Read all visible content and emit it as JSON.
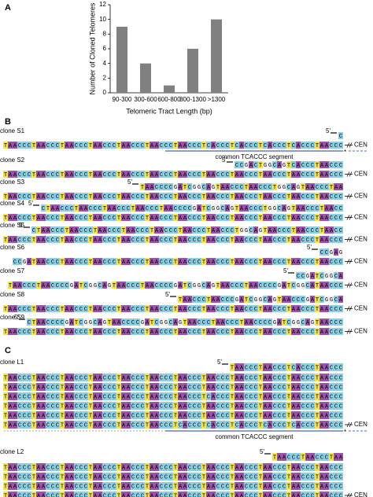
{
  "panel_a": {
    "label": "A",
    "chart_data": {
      "type": "bar",
      "categories": [
        "90-300",
        "300-600",
        "600-800",
        "800-1300",
        ">1300"
      ],
      "values": [
        9,
        4,
        1,
        6,
        10
      ],
      "color": "#808080",
      "ylim": [
        0,
        12
      ],
      "yticks": [
        0,
        2,
        4,
        6,
        8,
        10,
        12
      ],
      "ylabel": "Number of Cloned Telomeres",
      "xlabel": "Telomeric Tract Length (bp)"
    }
  },
  "panel_b": {
    "label": "B",
    "segment_label": "common TCACCC segment",
    "clones": [
      {
        "name": "clone S1",
        "lines": [
          "C",
          "TAACCCTAACCCTAACCCTAACCCTAACCCTAACCCTAACCCTCACCCTCACCCTCACCCTCACCCTAACCC"
        ]
      },
      {
        "name": "clone S2",
        "lines": [
          "CCGACTGGCAGTCACCCTAACCC",
          "TAACCCTAACCCTAACCCTAACCCTAACCCTAACCCTAACCCTAACCCTAACCCTAACCCTAACCCTAACCC"
        ]
      },
      {
        "name": "clone S3",
        "lines": [
          "TAACCCCGATCGGCAGTAACCCTAACCCTGGCAGTAACCCTAA",
          "TAACCCTAACCCTAACCCTAACCCTAACCCTAACCCTAACCCTAACCCTAACCCTAACCCTAACCCTAACCC"
        ]
      },
      {
        "name": "clone S4",
        "lines": [
          "CTAACCCTAACCCTAACCCTAACCCTAACCCCGATCGGCAGTAACCCTGGCAGTAACCCTAACC",
          "TAACCCTAACCCTAACCCTAACCCTAACCCTAACCCTAACCCTAACCCTAACCCTAACCCTAACCCTAACCC"
        ]
      },
      {
        "name": "clone S5",
        "lines": [
          "CTAACCCTAACCCTAACCCTAACCCTAACCCTAACCCTAACCCTGGCAGTAACCCTAACCCTAACC",
          "TAACCCTAACCCTAACCCTAACCCTAACCCTAACCCTAACCCTAACCCTAACCCTAACCCTAACCCTAACCC"
        ]
      },
      {
        "name": "clone S6",
        "lines": [
          "CCGAG",
          "CCGATAACCCTAACCCTAACCCTAACCCTAACCCTAACCCTAACCCTAACCCTAACCCTAACCCTAACCC"
        ]
      },
      {
        "name": "clone S7",
        "lines": [
          "CCGATCGGCA",
          "TAACCCTAACCCCGATCGGCAGTAACCCTAACCCCGATCGGCAGTAACCCTAACCCCGATCGGCATAACCC"
        ]
      },
      {
        "name": "clone S8",
        "lines": [
          "TAACCCTAACCCGATCGGCAGTAACCCGATCGGCA",
          "TAACCCTAACCCTAACCCTAACCCTAACCCTAACCCTAACCCTAACCCTAACCCTAACCCTAACCCTAACCC"
        ]
      },
      {
        "name": "clone S9",
        "lines": [
          "CTAACCCCGATCGGCAGTAACCCCGATCGGCAGTAACCCTAACCCTAACCCCGATCGGCAGTAACCC",
          "TAACCCTAACCCTAACCCTAACCCTAACCCTAACCCTAACCCTAACCCTAACCCTAACCCTAACCCTAACCC"
        ]
      }
    ]
  },
  "panel_c": {
    "label": "C",
    "segment_label": "common TCACCC segment",
    "clones": [
      {
        "name": "clone L1",
        "lines": [
          "TAACCCTAACCCTCACCCTAACCC",
          "TAACCCTAACCCTAACCCTAACCCTAACCCTAACCCTAACCCTAACCCTAACCCTAACCCTAACCCTAACCC",
          "TAACCCTAACCCTAACCCTAACCCTAACCCTAACCCTAACCCTAACCCTAACCCTAACCCTAACCCTAACCC",
          "TAACCCTAACCCTAACCCTAACCCTAACCCTAACCCTAACCCTCACCCTAACCCTAACCCTAACCCTAACCC",
          "TAACCCTAACCCTAACCCTAACCCTAACCCTAACCCTAACCCTAACCCTAACCCTAACCCTAACCCTAACCC",
          "TAACCCTAACCCTAACCCTAACCCTAACCCTAACCCTAACCCTAACCCTAACCCTAACCCTAACCCTAACCC",
          "TAACCCTAACCCTAACCCTAACCCTAACCCTAACCCTCACCCTCACCCTCACCCTCACCCTCACCCTAACCC"
        ]
      },
      {
        "name": "clone L2",
        "lines": [
          "TAACCCTAACCCTAA",
          "TAACCCTAACCCTAACCCTAACCCTAACCCTAACCCTAACCCTAACCCTAACCCTAACCCTAACCCTAACCC",
          "TAACCCTAACCCTAACCCTAACCCTAACCCTAACCCTAACCCTAACCCTAACCCTAACCCTAACCCTAACCC",
          "TAACCCTAACCCTAACCCTAACCCTAACCCTAACCCTAACCCTAACCCTAACCCTAACCCTAACCCTAACCC",
          "TAACCCTAACCCTAACCCTAACCCTAACCCTAACCCTAACCCTAACCCTAACCCTAACCCTAACCCTAACCC"
        ]
      }
    ]
  },
  "five_prime": "5'",
  "cen": "CEN",
  "segment_marker": "*"
}
